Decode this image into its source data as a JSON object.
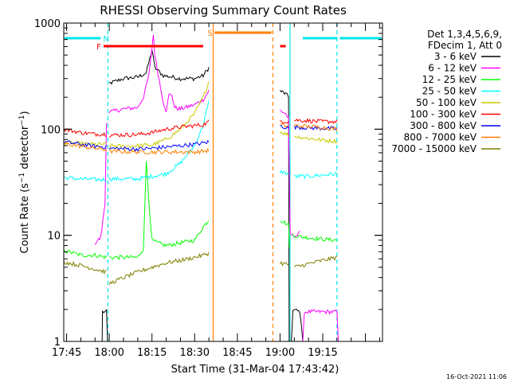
{
  "chart_data": {
    "type": "line",
    "title": "RHESSI Observing Summary Count Rates",
    "xlabel": "Start Time (31-Mar-04 17:43:42)",
    "ylabel_main": "Count Rate (s",
    "ylabel_sup1": "−1",
    "ylabel_mid": " detector",
    "ylabel_sup2": "−1",
    "ylabel_end": ")",
    "yscale": "log",
    "ylim": [
      1,
      1000
    ],
    "xlim_minutes": [
      -16,
      96
    ],
    "x_ticks": [
      {
        "label": "17:45",
        "m": -15
      },
      {
        "label": "18:00",
        "m": 0
      },
      {
        "label": "18:15",
        "m": 15
      },
      {
        "label": "18:30",
        "m": 30
      },
      {
        "label": "18:45",
        "m": 45
      },
      {
        "label": "19:00",
        "m": 60
      },
      {
        "label": "19:15",
        "m": 75
      }
    ],
    "y_ticks": [
      {
        "label": "1",
        "v": 1
      },
      {
        "label": "10",
        "v": 10
      },
      {
        "label": "100",
        "v": 100
      },
      {
        "label": "1000",
        "v": 1000
      }
    ],
    "legend_header": [
      "Det 1,3,4,5,6,9,",
      "FDecim 1, Att 0"
    ],
    "legend_placement": "right",
    "timestamp": "16-Oct-2021 11:06",
    "flags": [
      {
        "label": "N",
        "color": "#00e5e5",
        "segments": [
          [
            -16.5,
            -3
          ],
          [
            68,
            80
          ],
          [
            81,
            96
          ]
        ]
      },
      {
        "label": "F",
        "color": "#ff0000",
        "segments": [
          [
            -2,
            33
          ],
          [
            60,
            62
          ]
        ]
      },
      {
        "label": "S",
        "color": "#ff7f00",
        "segments": [
          [
            37,
            57
          ]
        ]
      }
    ],
    "markers": [
      {
        "color": "#00e5e5",
        "m": -16.3,
        "style": "solid"
      },
      {
        "color": "#00e5e5",
        "m": -0.5,
        "style": "dashed"
      },
      {
        "color": "#ff7f00",
        "m": 36.5,
        "style": "solid"
      },
      {
        "color": "#ff7f00",
        "m": 57.5,
        "style": "dashed"
      },
      {
        "color": "#00e5e5",
        "m": 63.5,
        "style": "solid"
      },
      {
        "color": "#00e5e5",
        "m": 80,
        "style": "dashed"
      }
    ],
    "series": [
      {
        "name": "3 - 6 keV",
        "color": "#000000",
        "segments": [
          [
            [
              -2.5,
              1.0
            ],
            [
              -2.4,
              1.9
            ],
            [
              -1,
              1.9
            ],
            [
              -0.6,
              1.0
            ]
          ],
          [
            [
              0,
              270
            ],
            [
              5,
              300
            ],
            [
              10,
              310
            ],
            [
              13,
              340
            ],
            [
              15,
              560
            ],
            [
              16,
              380
            ],
            [
              19,
              320
            ],
            [
              25,
              300
            ],
            [
              30,
              300
            ],
            [
              33,
              320
            ],
            [
              35,
              380
            ]
          ],
          [
            [
              60,
              230
            ],
            [
              62,
              215
            ],
            [
              63,
              200
            ],
            [
              63.2,
              1.0
            ]
          ],
          [
            [
              64,
              1.0
            ],
            [
              64.5,
              2.0
            ],
            [
              67,
              1.9
            ],
            [
              68,
              1.0
            ]
          ]
        ]
      },
      {
        "name": "6 - 12 keV",
        "color": "#ff00ff",
        "segments": [
          [
            [
              -5,
              8.5
            ],
            [
              -3,
              9.5
            ],
            [
              -1.5,
              20
            ],
            [
              -1,
              120
            ]
          ],
          [
            [
              0,
              145
            ],
            [
              5,
              155
            ],
            [
              10,
              160
            ],
            [
              12,
              200
            ],
            [
              14,
              330
            ],
            [
              15.5,
              780
            ],
            [
              16,
              500
            ],
            [
              18,
              250
            ],
            [
              19,
              180
            ],
            [
              20,
              150
            ],
            [
              21,
              210
            ],
            [
              22,
              210
            ],
            [
              23,
              160
            ],
            [
              25,
              155
            ],
            [
              30,
              170
            ],
            [
              33,
              190
            ],
            [
              35,
              230
            ]
          ],
          [
            [
              60,
              150
            ],
            [
              62,
              140
            ],
            [
              63,
              125
            ],
            [
              63.3,
              30
            ],
            [
              63.6,
              10
            ]
          ],
          [
            [
              64,
              10
            ],
            [
              66,
              10
            ],
            [
              67,
              10.5
            ]
          ],
          [
            [
              68,
              1.0
            ],
            [
              68.5,
              1.9
            ],
            [
              80,
              1.9
            ],
            [
              80.5,
              1.0
            ]
          ]
        ]
      },
      {
        "name": "12 - 25 keV",
        "color": "#00ff00",
        "segments": [
          [
            [
              -16,
              7.2
            ],
            [
              -10,
              6.5
            ],
            [
              -5,
              6.5
            ],
            [
              -1,
              6.2
            ]
          ],
          [
            [
              0,
              6.2
            ],
            [
              10,
              6.2
            ],
            [
              12,
              7.5
            ],
            [
              13,
              50
            ],
            [
              14,
              20
            ],
            [
              15,
              9
            ],
            [
              17,
              8.5
            ],
            [
              20,
              8
            ],
            [
              25,
              8.5
            ],
            [
              30,
              9
            ],
            [
              33,
              12
            ],
            [
              35,
              14
            ]
          ],
          [
            [
              60,
              14
            ],
            [
              62,
              13
            ],
            [
              63,
              12.5
            ],
            [
              63.3,
              8
            ]
          ],
          [
            [
              64,
              10
            ],
            [
              70,
              9.5
            ],
            [
              75,
              9.2
            ],
            [
              80,
              9.0
            ]
          ]
        ]
      },
      {
        "name": "25 - 50 keV",
        "color": "#00ffff",
        "segments": [
          [
            [
              -16,
              35
            ],
            [
              -10,
              34
            ],
            [
              -5,
              33.5
            ],
            [
              -1,
              33.5
            ]
          ],
          [
            [
              0,
              34
            ],
            [
              10,
              34
            ],
            [
              15,
              36
            ],
            [
              20,
              38
            ],
            [
              25,
              48
            ],
            [
              30,
              70
            ],
            [
              33,
              110
            ],
            [
              35,
              180
            ]
          ],
          [
            [
              60,
              40
            ],
            [
              63,
              38
            ]
          ],
          [
            [
              65,
              36
            ],
            [
              70,
              36
            ],
            [
              75,
              37
            ],
            [
              80,
              38
            ]
          ]
        ]
      },
      {
        "name": "50 - 100 keV",
        "color": "#c8c800",
        "segments": [
          [
            [
              -16,
              75
            ],
            [
              -10,
              73
            ],
            [
              -5,
              72
            ],
            [
              -1,
              72
            ]
          ],
          [
            [
              0,
              70
            ],
            [
              5,
              69
            ],
            [
              10,
              70
            ],
            [
              15,
              71
            ],
            [
              20,
              80
            ],
            [
              25,
              100
            ],
            [
              30,
              140
            ],
            [
              33,
              200
            ],
            [
              35,
              280
            ]
          ],
          [
            [
              60,
              95
            ],
            [
              63,
              88
            ]
          ],
          [
            [
              65,
              86
            ],
            [
              70,
              82
            ],
            [
              75,
              79
            ],
            [
              80,
              77
            ]
          ]
        ]
      },
      {
        "name": "100 - 300 keV",
        "color": "#ff0000",
        "segments": [
          [
            [
              -16,
              100
            ],
            [
              -10,
              93
            ],
            [
              -5,
              90
            ],
            [
              -1,
              90
            ]
          ],
          [
            [
              0,
              88
            ],
            [
              10,
              89
            ],
            [
              15,
              93
            ],
            [
              20,
              100
            ],
            [
              25,
              105
            ],
            [
              30,
              108
            ],
            [
              33,
              110
            ],
            [
              35,
              118
            ]
          ],
          [
            [
              60,
              120
            ],
            [
              63,
              118
            ]
          ],
          [
            [
              65,
              122
            ],
            [
              70,
              120
            ],
            [
              75,
              118
            ],
            [
              80,
              118
            ]
          ]
        ]
      },
      {
        "name": "300 - 800 keV",
        "color": "#0000ff",
        "segments": [
          [
            [
              -16,
              76
            ],
            [
              -10,
              72
            ],
            [
              -5,
              69
            ],
            [
              -1,
              68
            ]
          ],
          [
            [
              0,
              66
            ],
            [
              10,
              65
            ],
            [
              15,
              66
            ],
            [
              20,
              68
            ],
            [
              25,
              70
            ],
            [
              30,
              72
            ],
            [
              33,
              74
            ],
            [
              35,
              76
            ]
          ],
          [
            [
              60,
              107
            ],
            [
              63,
              103
            ]
          ],
          [
            [
              65,
              105
            ],
            [
              70,
              103
            ],
            [
              75,
              102
            ],
            [
              80,
              101
            ]
          ]
        ]
      },
      {
        "name": "800 - 7000 keV",
        "color": "#ff7f00",
        "segments": [
          [
            [
              -16,
              73
            ],
            [
              -10,
              69
            ],
            [
              -5,
              66
            ],
            [
              -1,
              64
            ]
          ],
          [
            [
              0,
              62
            ],
            [
              10,
              61
            ],
            [
              15,
              61
            ],
            [
              20,
              61
            ],
            [
              25,
              61
            ],
            [
              30,
              61
            ],
            [
              33,
              62
            ],
            [
              35,
              63
            ]
          ],
          [
            [
              60,
              110
            ],
            [
              63,
              106
            ]
          ],
          [
            [
              65,
              108
            ],
            [
              70,
              106
            ],
            [
              75,
              104
            ],
            [
              80,
              100
            ]
          ]
        ]
      },
      {
        "name": "7000 - 15000 keV",
        "color": "#7f7f00",
        "segments": [
          [
            [
              -16,
              5.6
            ],
            [
              -10,
              5.2
            ],
            [
              -5,
              4.8
            ],
            [
              -1,
              4.5
            ]
          ],
          [
            [
              0,
              3.5
            ],
            [
              5,
              4.0
            ],
            [
              10,
              4.5
            ],
            [
              15,
              5.0
            ],
            [
              20,
              5.5
            ],
            [
              25,
              5.8
            ],
            [
              30,
              6.2
            ],
            [
              33,
              6.5
            ],
            [
              35,
              6.8
            ]
          ],
          [
            [
              60,
              5.5
            ],
            [
              63,
              5.3
            ]
          ],
          [
            [
              65,
              5.0
            ],
            [
              70,
              5.4
            ],
            [
              75,
              5.8
            ],
            [
              80,
              6.2
            ]
          ]
        ]
      }
    ]
  }
}
